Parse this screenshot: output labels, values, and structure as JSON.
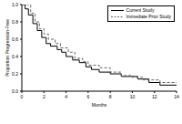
{
  "chart_data": {
    "type": "line",
    "x_label": "Months",
    "y_label": "Proportion Progression-Free",
    "xlim": [
      0,
      14
    ],
    "xticks": [
      0,
      2,
      4,
      6,
      8,
      10,
      12,
      14
    ],
    "ylim": [
      0,
      1
    ],
    "yticks": [
      {
        "value": 0,
        "label": "0.0"
      },
      0.2,
      0.4,
      0.6,
      0.8,
      {
        "value": 1,
        "label": "1.0"
      }
    ],
    "legend": "top-right",
    "grid": false,
    "series": [
      {
        "name": "Current Study",
        "color": "#000000",
        "line_style": "solid",
        "x": [
          0,
          0.3,
          0.6,
          1,
          1.4,
          1.8,
          2.2,
          2.6,
          3.2,
          3.6,
          4,
          4.6,
          5.2,
          5.8,
          6.3,
          7,
          8,
          9,
          10.5,
          11.5,
          12.5,
          14
        ],
        "values": [
          1,
          0.95,
          0.88,
          0.78,
          0.7,
          0.62,
          0.55,
          0.52,
          0.48,
          0.45,
          0.4,
          0.36,
          0.33,
          0.28,
          0.25,
          0.22,
          0.2,
          0.17,
          0.14,
          0.1,
          0.07,
          0.07
        ]
      },
      {
        "name": "Immediate Prior Study",
        "color": "#666666",
        "line_style": "dashed",
        "x": [
          0,
          0.8,
          1.2,
          1.6,
          2,
          2.4,
          3,
          3.5,
          4.2,
          4.8,
          5.5,
          6,
          7,
          8,
          9,
          10,
          11,
          12.5,
          14
        ],
        "values": [
          1,
          0.9,
          0.8,
          0.72,
          0.66,
          0.6,
          0.55,
          0.5,
          0.45,
          0.38,
          0.34,
          0.3,
          0.27,
          0.22,
          0.18,
          0.16,
          0.13,
          0.1,
          0.1
        ]
      }
    ]
  }
}
